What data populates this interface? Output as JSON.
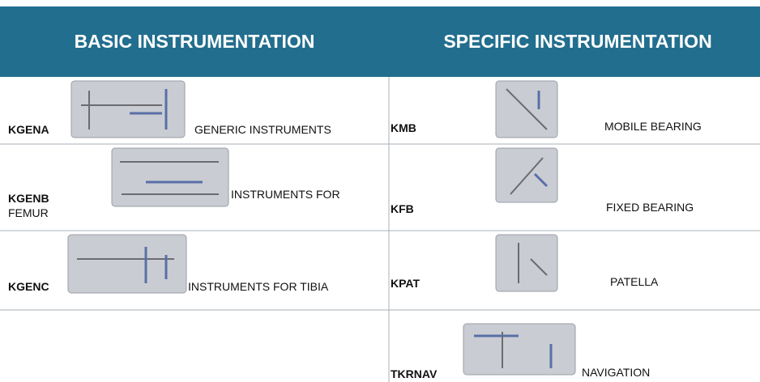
{
  "headers": [
    "BASIC INSTRUMENTATION",
    "SPECIFIC INSTRUMENTATION"
  ],
  "basic": [
    {
      "code": "KGENA",
      "label": "GENERIC INSTRUMENTS"
    },
    {
      "code": "KGENB",
      "label": "INSTRUMENTS FOR",
      "label_continued": "FEMUR"
    },
    {
      "code": "KGENC",
      "label": "INSTRUMENTS FOR TIBIA"
    }
  ],
  "specific": [
    {
      "code": "KMB",
      "label": "MOBILE BEARING"
    },
    {
      "code": "KFB",
      "label": "FIXED BEARING"
    },
    {
      "code": "KPAT",
      "label": "PATELLA"
    },
    {
      "code": "TKRNAV",
      "label": "NAVIGATION"
    }
  ]
}
